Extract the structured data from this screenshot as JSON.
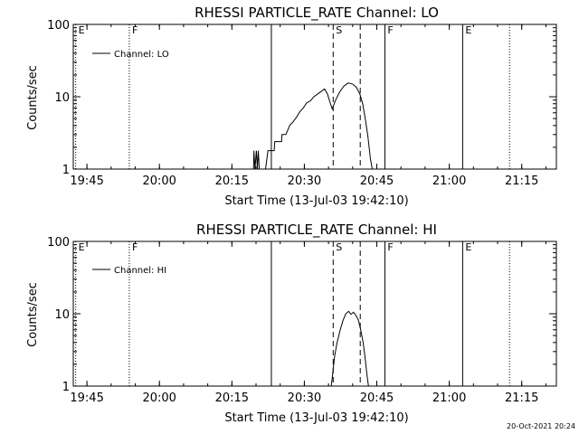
{
  "footer_timestamp": "20-Oct-2021 20:24",
  "chart_data": [
    {
      "type": "line",
      "title": "RHESSI PARTICLE_RATE Channel: LO",
      "xlabel": "Start Time (13-Jul-03 19:42:10)",
      "ylabel": "Counts/sec",
      "yscale": "log",
      "ylim": [
        1,
        100
      ],
      "xlim_minutes": [
        0,
        100
      ],
      "x_ticks": [
        {
          "label": "19:45",
          "value": 2.83
        },
        {
          "label": "20:00",
          "value": 17.83
        },
        {
          "label": "20:15",
          "value": 32.83
        },
        {
          "label": "20:30",
          "value": 47.83
        },
        {
          "label": "20:45",
          "value": 62.83
        },
        {
          "label": "21:00",
          "value": 77.83
        },
        {
          "label": "21:15",
          "value": 92.83
        }
      ],
      "y_ticks": [
        {
          "label": "1",
          "value": 1
        },
        {
          "label": "10",
          "value": 10
        },
        {
          "label": "100",
          "value": 100
        }
      ],
      "legend": {
        "label": "Channel: LO",
        "placement": "top-left"
      },
      "markers": [
        {
          "label": "E",
          "x": 0.5,
          "style": "dotted"
        },
        {
          "label": "F",
          "x": 11.6,
          "style": "dotted"
        },
        {
          "x": 41.0,
          "style": "solid"
        },
        {
          "label": "S",
          "x": 53.8,
          "style": "dashed"
        },
        {
          "x": 59.4,
          "style": "dashed"
        },
        {
          "label": "F",
          "x": 64.5,
          "style": "solid"
        },
        {
          "label": "E",
          "x": 80.6,
          "style": "solid"
        },
        {
          "x": 90.3,
          "style": "dotted"
        }
      ],
      "series": [
        {
          "name": "Channel: LO",
          "points": [
            [
              37.3,
              0.8
            ],
            [
              37.4,
              1.8
            ],
            [
              37.6,
              1.0
            ],
            [
              37.9,
              1.8
            ],
            [
              38.1,
              1.0
            ],
            [
              38.3,
              1.8
            ],
            [
              38.5,
              0.8
            ],
            [
              39.2,
              1.0
            ],
            [
              39.8,
              1.0
            ],
            [
              40.3,
              1.8
            ],
            [
              40.9,
              1.8
            ],
            [
              41.0,
              1.8
            ],
            [
              41.6,
              1.8
            ],
            [
              41.7,
              2.4
            ],
            [
              43.1,
              2.4
            ],
            [
              43.2,
              3.0
            ],
            [
              44.0,
              3.0
            ],
            [
              44.8,
              4.0
            ],
            [
              45.5,
              4.5
            ],
            [
              46.2,
              5.2
            ],
            [
              46.9,
              6.2
            ],
            [
              47.6,
              7.0
            ],
            [
              48.3,
              8.2
            ],
            [
              49.1,
              8.8
            ],
            [
              49.8,
              10.0
            ],
            [
              50.5,
              10.8
            ],
            [
              51.3,
              11.8
            ],
            [
              52.0,
              12.8
            ],
            [
              52.6,
              11.0
            ],
            [
              53.1,
              8.5
            ],
            [
              53.6,
              6.8
            ],
            [
              54.3,
              9.0
            ],
            [
              55.1,
              11.5
            ],
            [
              56.0,
              14.0
            ],
            [
              56.9,
              15.5
            ],
            [
              57.8,
              15.0
            ],
            [
              58.6,
              13.5
            ],
            [
              59.3,
              11.0
            ],
            [
              59.9,
              8.0
            ],
            [
              60.4,
              5.2
            ],
            [
              61.0,
              2.8
            ],
            [
              61.5,
              1.4
            ],
            [
              61.9,
              0.8
            ]
          ]
        }
      ]
    },
    {
      "type": "line",
      "title": "RHESSI PARTICLE_RATE Channel: HI",
      "xlabel": "Start Time (13-Jul-03 19:42:10)",
      "ylabel": "Counts/sec",
      "yscale": "log",
      "ylim": [
        1,
        100
      ],
      "xlim_minutes": [
        0,
        100
      ],
      "x_ticks": [
        {
          "label": "19:45",
          "value": 2.83
        },
        {
          "label": "20:00",
          "value": 17.83
        },
        {
          "label": "20:15",
          "value": 32.83
        },
        {
          "label": "20:30",
          "value": 47.83
        },
        {
          "label": "20:45",
          "value": 62.83
        },
        {
          "label": "21:00",
          "value": 77.83
        },
        {
          "label": "21:15",
          "value": 92.83
        }
      ],
      "y_ticks": [
        {
          "label": "1",
          "value": 1
        },
        {
          "label": "10",
          "value": 10
        },
        {
          "label": "100",
          "value": 100
        }
      ],
      "legend": {
        "label": "Channel: HI",
        "placement": "top-left"
      },
      "markers": [
        {
          "label": "E",
          "x": 0.5,
          "style": "dotted"
        },
        {
          "label": "F",
          "x": 11.6,
          "style": "dotted"
        },
        {
          "x": 41.0,
          "style": "solid"
        },
        {
          "label": "S",
          "x": 53.8,
          "style": "dashed"
        },
        {
          "x": 59.4,
          "style": "dashed"
        },
        {
          "label": "F",
          "x": 64.5,
          "style": "solid"
        },
        {
          "label": "E",
          "x": 80.6,
          "style": "solid"
        },
        {
          "x": 90.3,
          "style": "dotted"
        }
      ],
      "series": [
        {
          "name": "Channel: HI",
          "points": [
            [
              53.4,
              0.8
            ],
            [
              53.7,
              1.5
            ],
            [
              54.1,
              2.6
            ],
            [
              54.6,
              4.0
            ],
            [
              55.2,
              5.8
            ],
            [
              55.8,
              8.0
            ],
            [
              56.4,
              10.0
            ],
            [
              57.0,
              10.8
            ],
            [
              57.5,
              9.8
            ],
            [
              58.0,
              10.5
            ],
            [
              58.5,
              9.5
            ],
            [
              59.0,
              8.2
            ],
            [
              59.5,
              6.0
            ],
            [
              60.0,
              4.0
            ],
            [
              60.4,
              2.5
            ],
            [
              60.8,
              1.4
            ],
            [
              61.1,
              0.8
            ]
          ]
        }
      ]
    }
  ]
}
